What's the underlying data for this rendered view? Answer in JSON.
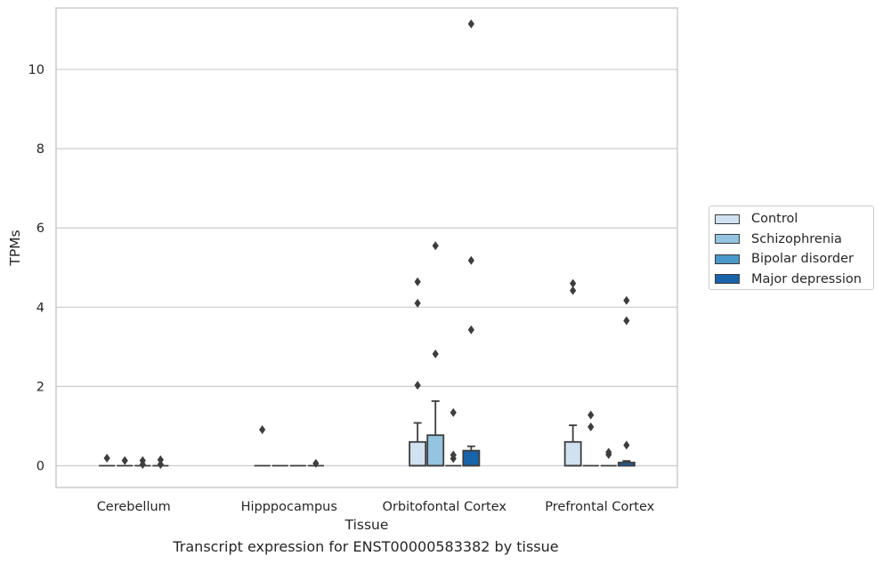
{
  "caption": "Transcript expression for ENST00000583382 by tissue",
  "chart_data": {
    "type": "box",
    "xlabel": "Tissue",
    "ylabel": "TPMs",
    "ylim": [
      -0.55,
      11.55
    ],
    "yticks": [
      0,
      2,
      4,
      6,
      8,
      10
    ],
    "grid": "horizontal",
    "legend_position": "right",
    "categories": [
      "Cerebellum",
      "Hipppocampus",
      "Orbitofontal Cortex",
      "Prefrontal Cortex"
    ],
    "series": [
      {
        "name": "Control",
        "color": "#d0e1f2",
        "boxes": [
          {
            "q1": 0,
            "median": 0,
            "q3": 0,
            "whislo": 0,
            "whishi": 0,
            "fliers": [
              0.19
            ]
          },
          {
            "q1": 0,
            "median": 0,
            "q3": 0,
            "whislo": 0,
            "whishi": 0,
            "fliers": [
              0.91
            ]
          },
          {
            "q1": 0,
            "median": 0,
            "q3": 0.6,
            "whislo": 0,
            "whishi": 1.08,
            "fliers": [
              2.03,
              4.1,
              4.64
            ]
          },
          {
            "q1": 0,
            "median": 0,
            "q3": 0.6,
            "whislo": 0,
            "whishi": 1.02,
            "fliers": [
              4.42,
              4.6
            ]
          }
        ]
      },
      {
        "name": "Schizophrenia",
        "color": "#94c4df",
        "boxes": [
          {
            "q1": 0,
            "median": 0,
            "q3": 0,
            "whislo": 0,
            "whishi": 0,
            "fliers": [
              0.13
            ]
          },
          {
            "q1": 0,
            "median": 0,
            "q3": 0,
            "whislo": 0,
            "whishi": 0,
            "fliers": []
          },
          {
            "q1": 0,
            "median": 0,
            "q3": 0.77,
            "whislo": 0,
            "whishi": 1.63,
            "fliers": [
              2.82,
              5.55
            ]
          },
          {
            "q1": 0,
            "median": 0,
            "q3": 0,
            "whislo": 0,
            "whishi": 0,
            "fliers": [
              0.98,
              1.28
            ]
          }
        ]
      },
      {
        "name": "Bipolar disorder",
        "color": "#4a98c9",
        "boxes": [
          {
            "q1": 0,
            "median": 0,
            "q3": 0,
            "whislo": 0,
            "whishi": 0,
            "fliers": [
              0.03,
              0.13
            ]
          },
          {
            "q1": 0,
            "median": 0,
            "q3": 0,
            "whislo": 0,
            "whishi": 0,
            "fliers": []
          },
          {
            "q1": 0,
            "median": 0,
            "q3": 0,
            "whislo": 0,
            "whishi": 0,
            "fliers": [
              0.18,
              0.27,
              1.34
            ]
          },
          {
            "q1": 0,
            "median": 0,
            "q3": 0,
            "whislo": 0,
            "whishi": 0,
            "fliers": [
              0.28,
              0.34
            ]
          }
        ]
      },
      {
        "name": "Major depression",
        "color": "#1764ab",
        "boxes": [
          {
            "q1": 0,
            "median": 0,
            "q3": 0,
            "whislo": 0,
            "whishi": 0,
            "fliers": [
              0.03,
              0.15
            ]
          },
          {
            "q1": 0,
            "median": 0,
            "q3": 0,
            "whislo": 0,
            "whishi": 0,
            "fliers": [
              0.06
            ]
          },
          {
            "q1": 0,
            "median": 0,
            "q3": 0.38,
            "whislo": 0,
            "whishi": 0.49,
            "fliers": [
              3.43,
              5.18,
              11.15
            ]
          },
          {
            "q1": 0,
            "median": 0,
            "q3": 0.08,
            "whislo": 0,
            "whishi": 0.12,
            "fliers": [
              0.52,
              3.66,
              4.17
            ]
          }
        ]
      }
    ]
  }
}
